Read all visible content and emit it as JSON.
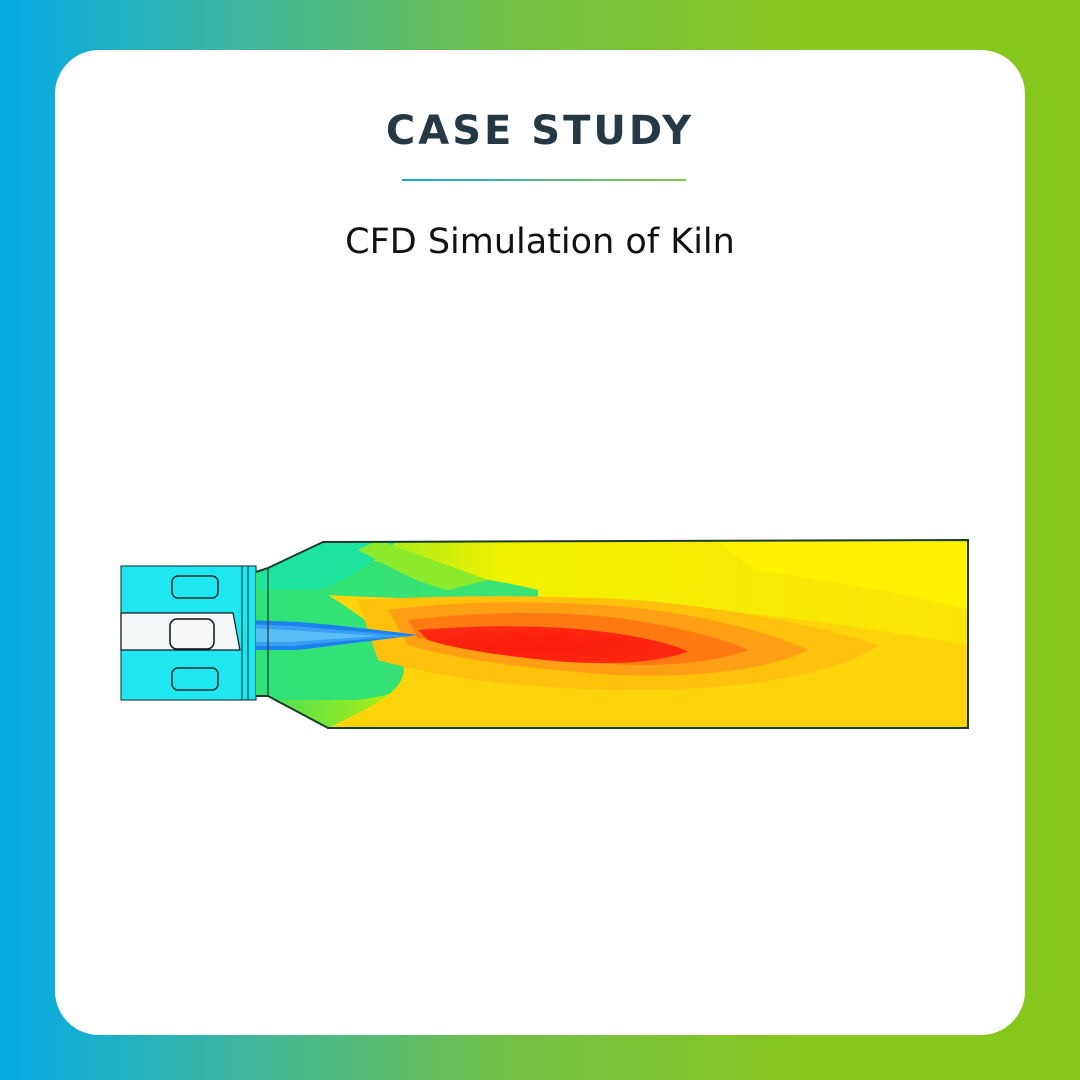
{
  "header": {
    "title": "CASE STUDY",
    "subtitle": "CFD Simulation of Kiln"
  },
  "colors": {
    "gradient_left": "#04aae6",
    "gradient_right": "#86c71d",
    "title_color": "#253843"
  },
  "figure": {
    "icon": "cfd-contour-plot"
  }
}
